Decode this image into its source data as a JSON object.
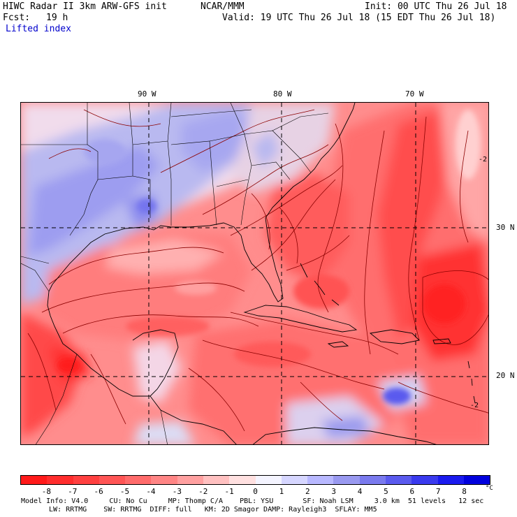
{
  "header": {
    "model_line": "HIWC Radar II 3km ARW-GFS init",
    "org": "NCAR/MMM",
    "init": "Init: 00 UTC Thu 26 Jul 18",
    "fcst_label": "Fcst:",
    "fcst_value": "19 h",
    "valid": "Valid: 19 UTC Thu 26 Jul 18 (15 EDT Thu 26 Jul 18)",
    "field": "Lifted index"
  },
  "map": {
    "lon_labels": [
      "90 W",
      "80 W",
      "70 W"
    ],
    "lat_labels": [
      "30 N",
      "20 N"
    ],
    "contour_labels": [
      "-2",
      "-2"
    ]
  },
  "colorbar": {
    "tick_labels": [
      "-8",
      "-7",
      "-6",
      "-5",
      "-4",
      "-3",
      "-2",
      "-1",
      "0",
      "1",
      "2",
      "3",
      "4",
      "5",
      "6",
      "7",
      "8"
    ],
    "unit": "°C",
    "colors": [
      "#ff1a1a",
      "#ff2d2d",
      "#ff4040",
      "#ff5555",
      "#ff6b6b",
      "#ff8585",
      "#ffa0a0",
      "#ffc0c0",
      "#ffe0e0",
      "#f4f4ff",
      "#d6d6ff",
      "#b8b8ff",
      "#9999f0",
      "#7a7aee",
      "#5a5aee",
      "#3a3aee",
      "#1a1aee",
      "#0000dd"
    ]
  },
  "footer": {
    "line1": "Model Info: V4.0     CU: No Cu     MP: Thomp C/A    PBL: YSU       SF: Noah LSM     3.0 km  51 levels   12 sec",
    "line2": "LW: RRTMG    SW: RRTMG  DIFF: full   KM: 2D Smagor DAMP: Rayleigh3  SFLAY: MM5"
  }
}
